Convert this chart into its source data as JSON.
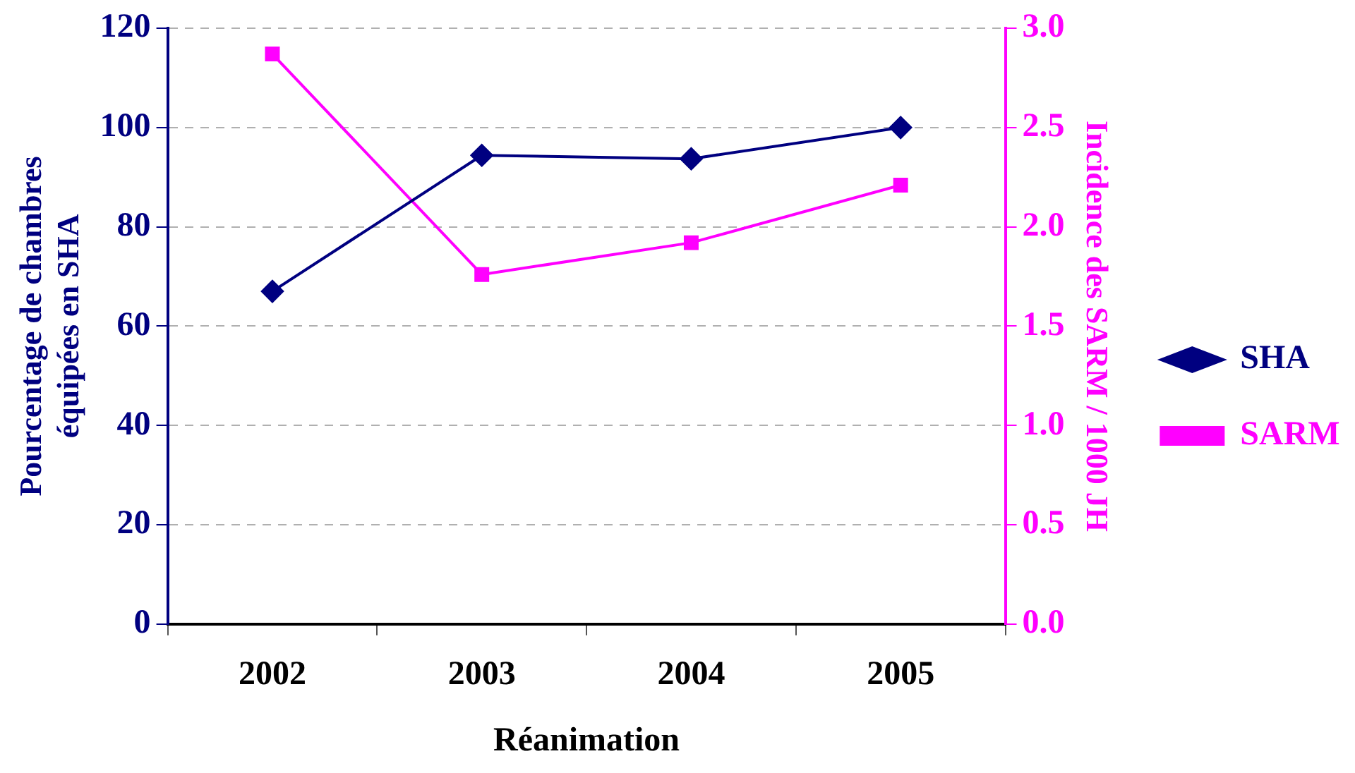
{
  "chart_data": {
    "type": "line",
    "xlabel": "Réanimation",
    "ylabel": "Pourcentage de chambres\néquipées en SHA",
    "y2label": "Incidence des SARM / 1000 JH",
    "categories": [
      "2002",
      "2003",
      "2004",
      "2005"
    ],
    "series": [
      {
        "name": "SHA",
        "color": "#000080",
        "marker": "diamond",
        "values": [
          67,
          94.4,
          93.7,
          100
        ]
      },
      {
        "name": "SARM",
        "color": "#ff00ff",
        "marker": "square",
        "axis": "y2",
        "values": [
          2.87,
          1.76,
          1.92,
          2.21
        ]
      }
    ],
    "ylim": [
      0,
      120
    ],
    "yticks": [
      0,
      20,
      40,
      60,
      80,
      100,
      120
    ],
    "y2lim": [
      0,
      3
    ],
    "y2ticks": [
      {
        "value": 0,
        "label": "0.0"
      },
      {
        "value": 0.5,
        "label": "0.5"
      },
      {
        "value": 1,
        "label": "1.0"
      },
      {
        "value": 1.5,
        "label": "1.5"
      },
      {
        "value": 2,
        "label": "2.0"
      },
      {
        "value": 2.5,
        "label": "2.5"
      },
      {
        "value": 3,
        "label": "3.0"
      }
    ],
    "grid": "y",
    "legend": "right",
    "line_style": "solid"
  }
}
